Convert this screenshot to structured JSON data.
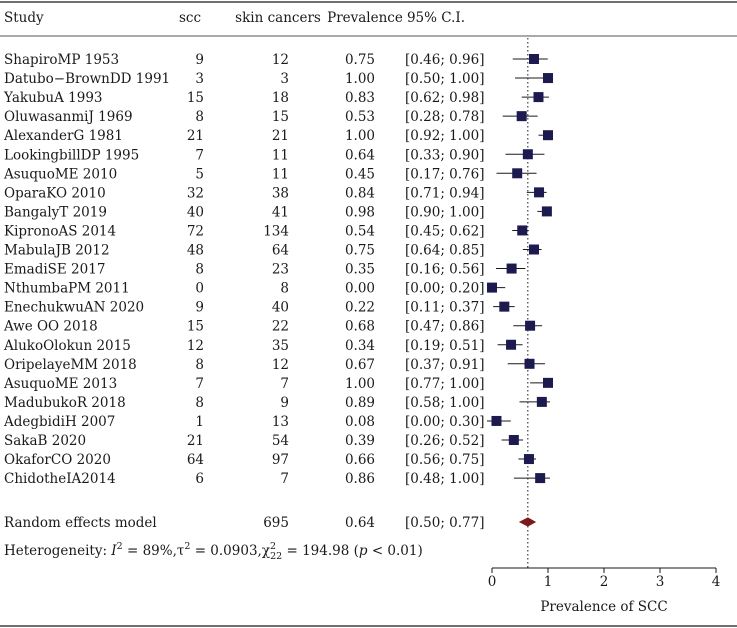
{
  "headers": {
    "study": "Study",
    "scc": "scc",
    "skin": "skin cancers",
    "prevalence": "Prevalence",
    "ci": "95% C.I."
  },
  "chart_data": {
    "type": "forest",
    "xlabel": "Prevalence of SCC",
    "xlim": [
      0,
      4
    ],
    "xticks": [
      "0",
      "1",
      "2",
      "3",
      "4"
    ],
    "reference_line": 0.64,
    "studies": [
      {
        "study": "ShapiroMP 1953",
        "scc": "9",
        "skin": "12",
        "prev": "0.75",
        "ci": "[0.46; 0.96]",
        "est": 0.75,
        "lo": 0.46,
        "hi": 0.96
      },
      {
        "study": "Datubo−BrownDD 1991",
        "scc": "3",
        "skin": "3",
        "prev": "1.00",
        "ci": "[0.50; 1.00]",
        "est": 1.0,
        "lo": 0.5,
        "hi": 1.0
      },
      {
        "study": "YakubuA 1993",
        "scc": "15",
        "skin": "18",
        "prev": "0.83",
        "ci": "[0.62; 0.98]",
        "est": 0.83,
        "lo": 0.62,
        "hi": 0.98
      },
      {
        "study": "OluwasanmiJ 1969",
        "scc": "8",
        "skin": "15",
        "prev": "0.53",
        "ci": "[0.28; 0.78]",
        "est": 0.53,
        "lo": 0.28,
        "hi": 0.78
      },
      {
        "study": "AlexanderG 1981",
        "scc": "21",
        "skin": "21",
        "prev": "1.00",
        "ci": "[0.92; 1.00]",
        "est": 1.0,
        "lo": 0.92,
        "hi": 1.0
      },
      {
        "study": "LookingbillDP 1995",
        "scc": "7",
        "skin": "11",
        "prev": "0.64",
        "ci": "[0.33; 0.90]",
        "est": 0.64,
        "lo": 0.33,
        "hi": 0.9
      },
      {
        "study": "AsuquoME 2010",
        "scc": "5",
        "skin": "11",
        "prev": "0.45",
        "ci": "[0.17; 0.76]",
        "est": 0.45,
        "lo": 0.17,
        "hi": 0.76
      },
      {
        "study": "OparaKO 2010",
        "scc": "32",
        "skin": "38",
        "prev": "0.84",
        "ci": "[0.71; 0.94]",
        "est": 0.84,
        "lo": 0.71,
        "hi": 0.94
      },
      {
        "study": "BangalyT 2019",
        "scc": "40",
        "skin": "41",
        "prev": "0.98",
        "ci": "[0.90; 1.00]",
        "est": 0.98,
        "lo": 0.9,
        "hi": 1.0
      },
      {
        "study": "KipronoAS 2014",
        "scc": "72",
        "skin": "134",
        "prev": "0.54",
        "ci": "[0.45; 0.62]",
        "est": 0.54,
        "lo": 0.45,
        "hi": 0.62
      },
      {
        "study": "MabulaJB 2012",
        "scc": "48",
        "skin": "64",
        "prev": "0.75",
        "ci": "[0.64; 0.85]",
        "est": 0.75,
        "lo": 0.64,
        "hi": 0.85
      },
      {
        "study": "EmadiSE 2017",
        "scc": "8",
        "skin": "23",
        "prev": "0.35",
        "ci": "[0.16; 0.56]",
        "est": 0.35,
        "lo": 0.16,
        "hi": 0.56
      },
      {
        "study": "NthumbaPM 2011",
        "scc": "0",
        "skin": "8",
        "prev": "0.00",
        "ci": "[0.00; 0.20]",
        "est": 0.0,
        "lo": 0.0,
        "hi": 0.2
      },
      {
        "study": "EnechukwuAN 2020",
        "scc": "9",
        "skin": "40",
        "prev": "0.22",
        "ci": "[0.11; 0.37]",
        "est": 0.22,
        "lo": 0.11,
        "hi": 0.37
      },
      {
        "study": "Awe OO 2018",
        "scc": "15",
        "skin": "22",
        "prev": "0.68",
        "ci": "[0.47; 0.86]",
        "est": 0.68,
        "lo": 0.47,
        "hi": 0.86
      },
      {
        "study": "AlukoOlokun 2015",
        "scc": "12",
        "skin": "35",
        "prev": "0.34",
        "ci": "[0.19; 0.51]",
        "est": 0.34,
        "lo": 0.19,
        "hi": 0.51
      },
      {
        "study": "OripelayeMM 2018",
        "scc": "8",
        "skin": "12",
        "prev": "0.67",
        "ci": "[0.37; 0.91]",
        "est": 0.67,
        "lo": 0.37,
        "hi": 0.91
      },
      {
        "study": "AsuquoME 2013",
        "scc": "7",
        "skin": "7",
        "prev": "1.00",
        "ci": "[0.77; 1.00]",
        "est": 1.0,
        "lo": 0.77,
        "hi": 1.0
      },
      {
        "study": "MadubukoR 2018",
        "scc": "8",
        "skin": "9",
        "prev": "0.89",
        "ci": "[0.58; 1.00]",
        "est": 0.89,
        "lo": 0.58,
        "hi": 1.0
      },
      {
        "study": "AdegbidiH 2007",
        "scc": "1",
        "skin": "13",
        "prev": "0.08",
        "ci": "[0.00; 0.30]",
        "est": 0.08,
        "lo": 0.0,
        "hi": 0.3
      },
      {
        "study": "SakaB 2020",
        "scc": "21",
        "skin": "54",
        "prev": "0.39",
        "ci": "[0.26; 0.52]",
        "est": 0.39,
        "lo": 0.26,
        "hi": 0.52
      },
      {
        "study": "OkaforCO 2020",
        "scc": "64",
        "skin": "97",
        "prev": "0.66",
        "ci": "[0.56; 0.75]",
        "est": 0.66,
        "lo": 0.56,
        "hi": 0.75
      },
      {
        "study": "ChidotheIA2014",
        "scc": "6",
        "skin": "7",
        "prev": "0.86",
        "ci": "[0.48; 1.00]",
        "est": 0.86,
        "lo": 0.48,
        "hi": 1.0
      }
    ],
    "pooled": {
      "label": "Random effects model",
      "skin": "695",
      "prev": "0.64",
      "ci": "[0.50; 0.77]",
      "est": 0.64,
      "lo": 0.5,
      "hi": 0.77
    },
    "heterogeneity": {
      "prefix": "Heterogeneity: ",
      "i2_sym": "I",
      "i2_sup": "2",
      "i2_val": " = 89%,",
      "tau": "τ",
      "tau_sup": "2",
      "tau_val": " = 0.0903,",
      "chi": "χ",
      "chi_sup": "2",
      "chi_sub": "22",
      "chi_val": " = 194.98 (",
      "p": "p",
      "p_val": " < 0.01)"
    },
    "colors": {
      "square": "#1c1a4f",
      "diamond": "#7a1a1a",
      "line": "#1a1a1a"
    }
  }
}
